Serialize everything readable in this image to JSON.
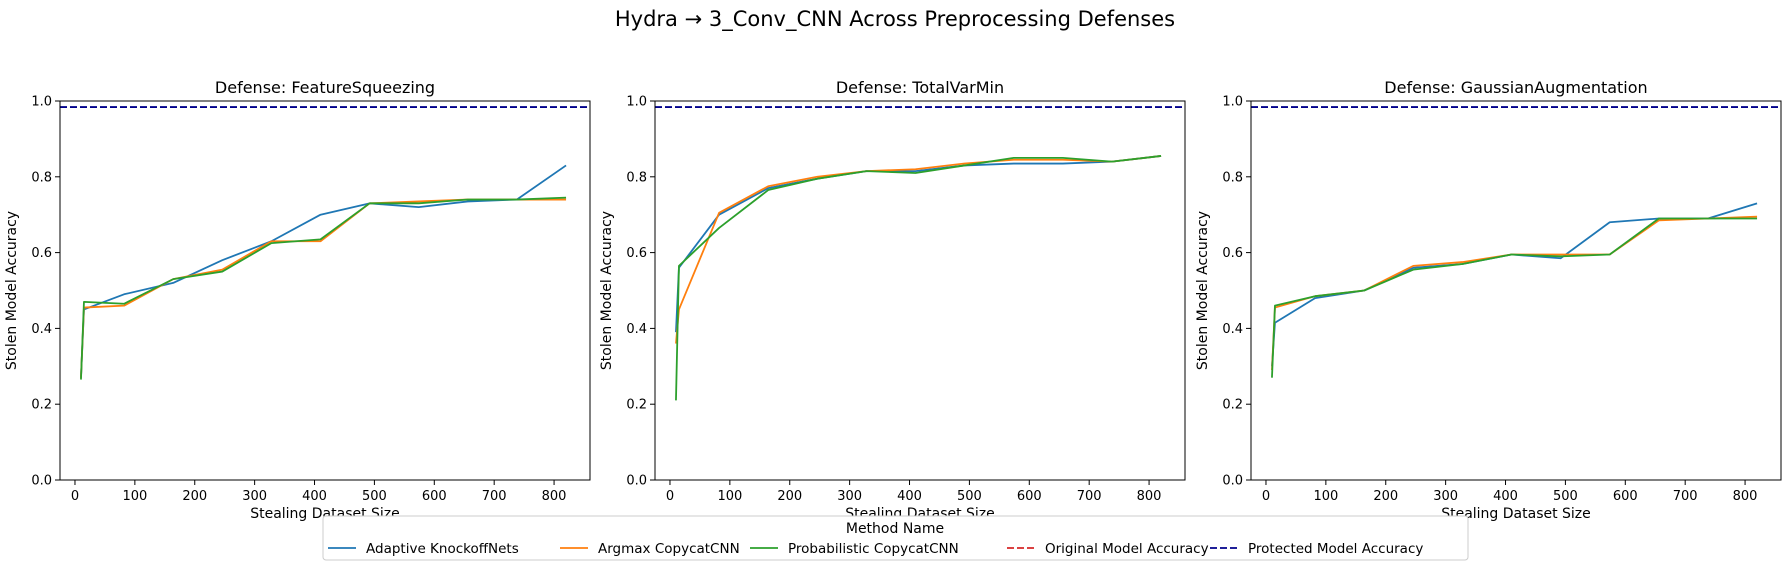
{
  "figure": {
    "title": "Hydra → 3_Conv_CNN Across Preprocessing Defenses"
  },
  "legend": {
    "title": "Method Name",
    "items": [
      {
        "label": "Adaptive KnockoffNets",
        "color": "#1f77b4",
        "dash": false
      },
      {
        "label": "Argmax CopycatCNN",
        "color": "#ff7f0e",
        "dash": false
      },
      {
        "label": "Probabilistic CopycatCNN",
        "color": "#2ca02c",
        "dash": false
      },
      {
        "label": "Original Model Accuracy",
        "color": "#d62728",
        "dash": true
      },
      {
        "label": "Protected Model Accuracy",
        "color": "#00008b",
        "dash": true
      }
    ]
  },
  "chart_data": [
    {
      "type": "line",
      "title": "Defense: FeatureSqueezing",
      "xlabel": "Stealing Dataset Size",
      "ylabel": "Stolen Model Accuracy",
      "xlim": [
        -25,
        860
      ],
      "ylim": [
        0,
        1.0
      ],
      "xticks": [
        0,
        100,
        200,
        300,
        400,
        500,
        600,
        700,
        800
      ],
      "yticks": [
        0.0,
        0.2,
        0.4,
        0.6,
        0.8,
        1.0
      ],
      "x": [
        10,
        15,
        82,
        164,
        246,
        328,
        410,
        492,
        574,
        656,
        738,
        820
      ],
      "series": [
        {
          "name": "Adaptive KnockoffNets",
          "color": "#1f77b4",
          "values": [
            0.27,
            0.45,
            0.49,
            0.52,
            0.58,
            0.63,
            0.7,
            0.73,
            0.72,
            0.735,
            0.74,
            0.83
          ]
        },
        {
          "name": "Argmax CopycatCNN",
          "color": "#ff7f0e",
          "values": [
            0.27,
            0.455,
            0.46,
            0.53,
            0.555,
            0.63,
            0.63,
            0.73,
            0.735,
            0.74,
            0.74,
            0.74
          ]
        },
        {
          "name": "Probabilistic CopycatCNN",
          "color": "#2ca02c",
          "values": [
            0.265,
            0.47,
            0.465,
            0.53,
            0.55,
            0.625,
            0.635,
            0.73,
            0.73,
            0.74,
            0.74,
            0.745
          ]
        }
      ],
      "hlines": [
        {
          "name": "Protected Model Accuracy",
          "color": "#00008b",
          "y": 0.984
        }
      ]
    },
    {
      "type": "line",
      "title": "Defense: TotalVarMin",
      "xlabel": "Stealing Dataset Size",
      "ylabel": "Stolen Model Accuracy",
      "xlim": [
        -25,
        860
      ],
      "ylim": [
        0,
        1.0
      ],
      "xticks": [
        0,
        100,
        200,
        300,
        400,
        500,
        600,
        700,
        800
      ],
      "yticks": [
        0.0,
        0.2,
        0.4,
        0.6,
        0.8,
        1.0
      ],
      "x": [
        10,
        15,
        82,
        164,
        246,
        328,
        410,
        492,
        574,
        656,
        738,
        820
      ],
      "series": [
        {
          "name": "Adaptive KnockoffNets",
          "color": "#1f77b4",
          "values": [
            0.39,
            0.56,
            0.7,
            0.77,
            0.795,
            0.815,
            0.815,
            0.83,
            0.835,
            0.835,
            0.84,
            0.855
          ]
        },
        {
          "name": "Argmax CopycatCNN",
          "color": "#ff7f0e",
          "values": [
            0.36,
            0.45,
            0.705,
            0.775,
            0.8,
            0.815,
            0.82,
            0.835,
            0.845,
            0.845,
            0.84,
            0.855
          ]
        },
        {
          "name": "Probabilistic CopycatCNN",
          "color": "#2ca02c",
          "values": [
            0.21,
            0.565,
            0.665,
            0.765,
            0.795,
            0.815,
            0.81,
            0.83,
            0.85,
            0.85,
            0.84,
            0.855
          ]
        }
      ],
      "hlines": [
        {
          "name": "Protected Model Accuracy",
          "color": "#00008b",
          "y": 0.984
        }
      ]
    },
    {
      "type": "line",
      "title": "Defense: GaussianAugmentation",
      "xlabel": "Stealing Dataset Size",
      "ylabel": "Stolen Model Accuracy",
      "xlim": [
        -25,
        860
      ],
      "ylim": [
        0,
        1.0
      ],
      "xticks": [
        0,
        100,
        200,
        300,
        400,
        500,
        600,
        700,
        800
      ],
      "yticks": [
        0.0,
        0.2,
        0.4,
        0.6,
        0.8,
        1.0
      ],
      "x": [
        10,
        15,
        82,
        164,
        246,
        328,
        410,
        492,
        574,
        656,
        738,
        820
      ],
      "series": [
        {
          "name": "Adaptive KnockoffNets",
          "color": "#1f77b4",
          "values": [
            0.3,
            0.415,
            0.48,
            0.5,
            0.56,
            0.57,
            0.595,
            0.585,
            0.68,
            0.69,
            0.69,
            0.73
          ]
        },
        {
          "name": "Argmax CopycatCNN",
          "color": "#ff7f0e",
          "values": [
            0.29,
            0.455,
            0.485,
            0.5,
            0.565,
            0.575,
            0.595,
            0.595,
            0.595,
            0.685,
            0.69,
            0.695
          ]
        },
        {
          "name": "Probabilistic CopycatCNN",
          "color": "#2ca02c",
          "values": [
            0.27,
            0.46,
            0.485,
            0.5,
            0.555,
            0.57,
            0.595,
            0.59,
            0.595,
            0.69,
            0.69,
            0.69
          ]
        }
      ],
      "hlines": [
        {
          "name": "Protected Model Accuracy",
          "color": "#00008b",
          "y": 0.984
        }
      ]
    }
  ]
}
